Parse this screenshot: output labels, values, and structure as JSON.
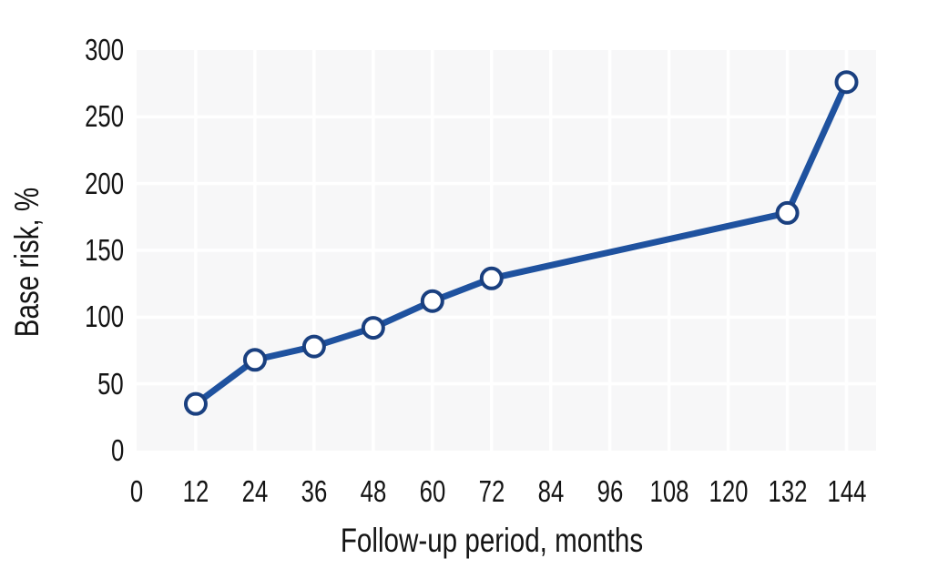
{
  "chart_data": {
    "type": "line",
    "title": "",
    "xlabel": "Follow-up period, months",
    "ylabel": "Base risk, %",
    "x_ticks": [
      0,
      12,
      24,
      36,
      48,
      60,
      72,
      84,
      96,
      108,
      120,
      132,
      144
    ],
    "y_ticks": [
      0,
      50,
      100,
      150,
      200,
      250,
      300
    ],
    "xlim": [
      0,
      150
    ],
    "ylim": [
      0,
      300
    ],
    "grid": true,
    "legend": "none",
    "series": [
      {
        "name": "Base risk",
        "points": [
          [
            12,
            35
          ],
          [
            24,
            68
          ],
          [
            36,
            78
          ],
          [
            48,
            92
          ],
          [
            60,
            112
          ],
          [
            72,
            129
          ],
          [
            132,
            178
          ],
          [
            144,
            276
          ]
        ]
      }
    ]
  },
  "colors": {
    "line": "#1F529F",
    "marker_ring": "#1A4080",
    "marker_fill": "#FFFFFF",
    "plot_background": "#F7F7F8",
    "grid_line": "#FFFFFF",
    "text": "#141414"
  }
}
